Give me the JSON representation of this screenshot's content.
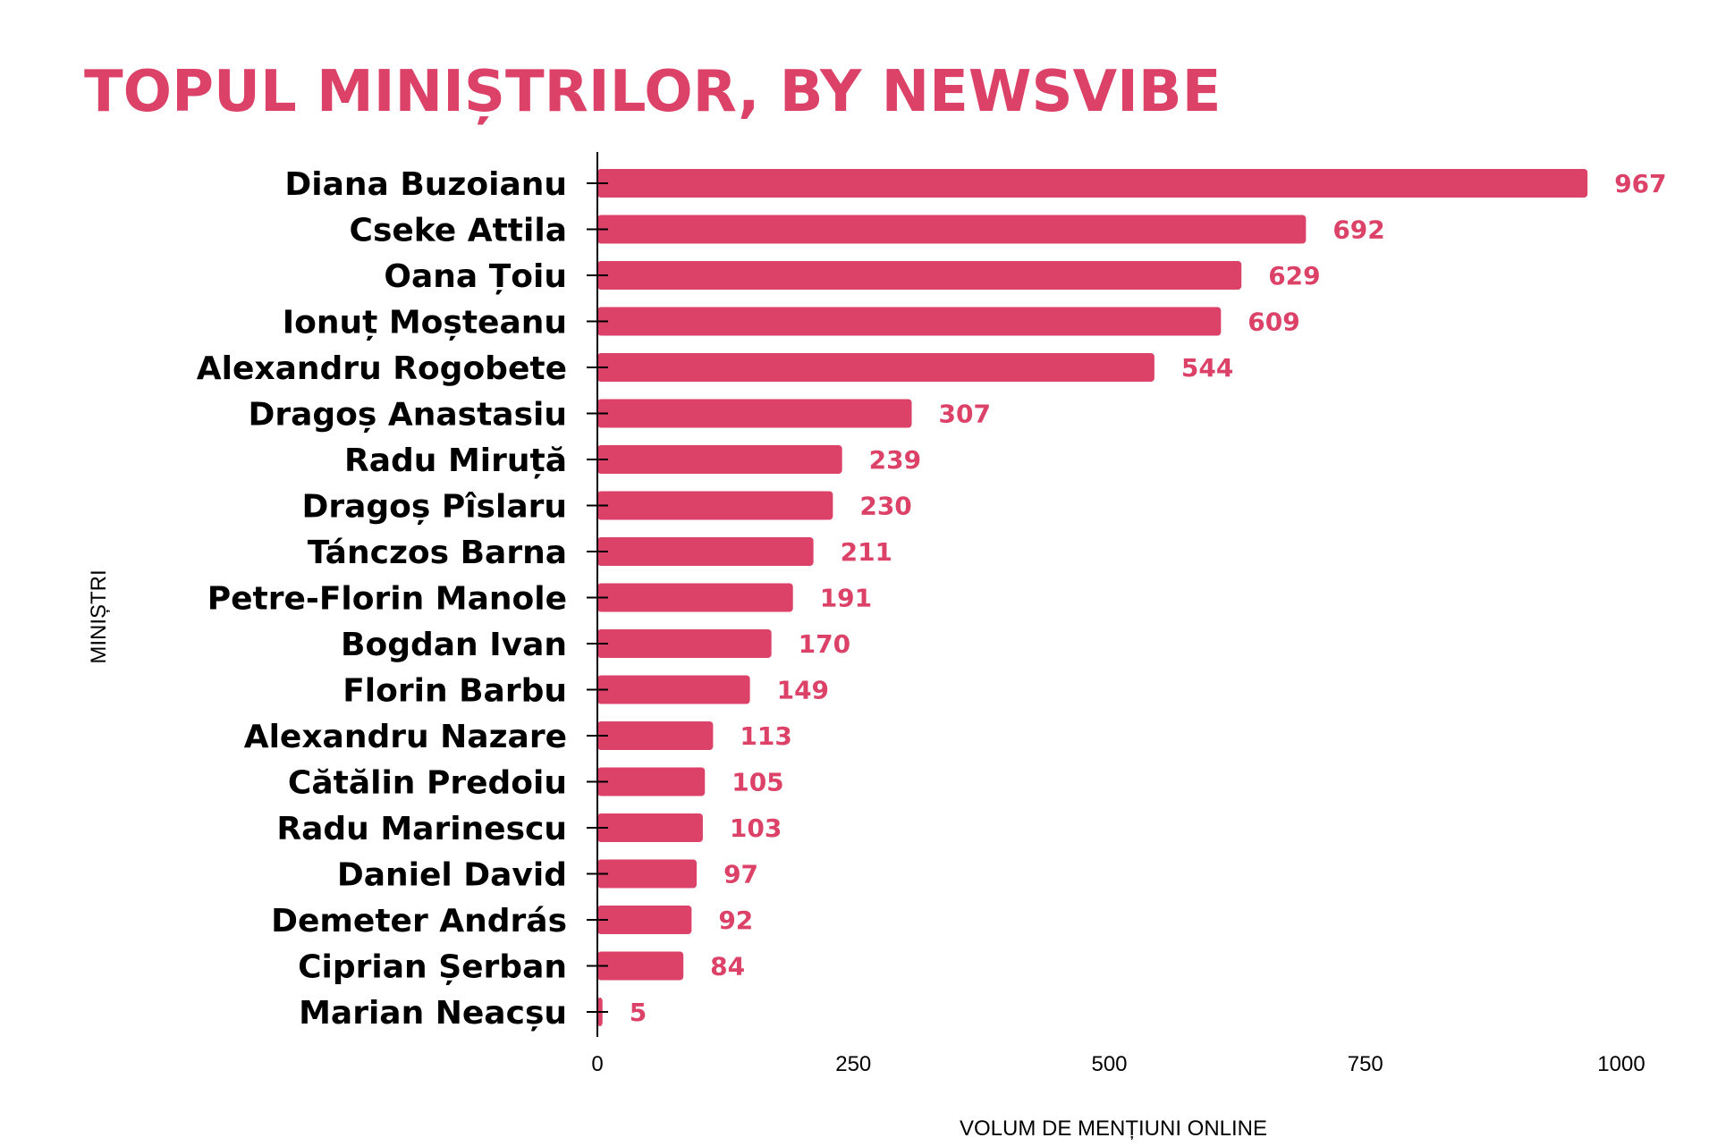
{
  "chart_data": {
    "type": "bar",
    "orientation": "horizontal",
    "title": "TOPUL MINIȘTRILOR, BY NEWSVIBE",
    "xlabel": "VOLUM DE MENȚIUNI ONLINE",
    "ylabel": "MINIȘTRI",
    "xlim": [
      0,
      1000
    ],
    "xticks": [
      0,
      250,
      500,
      750,
      1000
    ],
    "grid": false,
    "legend": "none",
    "bar_color": "#dc4268",
    "label_color": "#dc4268",
    "categories": [
      "Diana Buzoianu",
      "Cseke Attila",
      "Oana Țoiu",
      "Ionuț Moșteanu",
      "Alexandru Rogobete",
      "Dragoș Anastasiu",
      "Radu Miruță",
      "Dragoș Pîslaru",
      "Tánczos Barna",
      "Petre-Florin Manole",
      "Bogdan Ivan",
      "Florin Barbu",
      "Alexandru Nazare",
      "Cătălin Predoiu",
      "Radu Marinescu",
      "Daniel David",
      "Demeter András",
      "Ciprian Șerban",
      "Marian Neacșu"
    ],
    "values": [
      967,
      692,
      629,
      609,
      544,
      307,
      239,
      230,
      211,
      191,
      170,
      149,
      113,
      105,
      103,
      97,
      92,
      84,
      5
    ]
  }
}
